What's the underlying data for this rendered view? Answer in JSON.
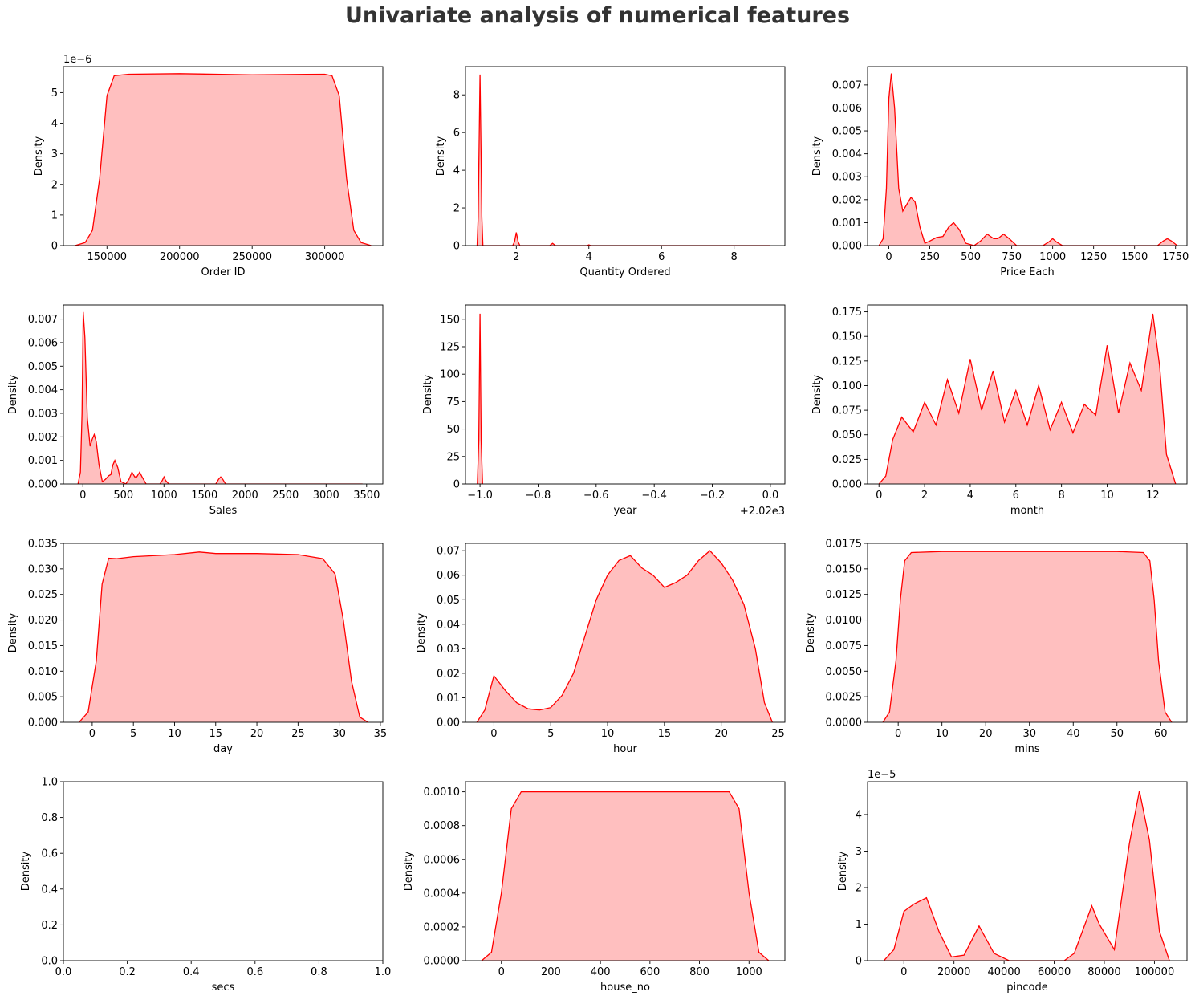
{
  "figure": {
    "title": "Univariate analysis of numerical features",
    "line_color": "#ff0000",
    "fill_color": "#ff8080"
  },
  "chart_data": [
    {
      "type": "area",
      "xlabel": "Order ID",
      "ylabel": "Density",
      "xlim": [
        120000,
        340000
      ],
      "ylim": [
        0,
        5.85
      ],
      "xticks": [
        150000,
        200000,
        250000,
        300000
      ],
      "yticks": [
        0,
        1,
        2,
        3,
        4,
        5
      ],
      "y_offset_text": "1e−6",
      "points": [
        [
          128000,
          0
        ],
        [
          135000,
          0.1
        ],
        [
          140000,
          0.5
        ],
        [
          145000,
          2.2
        ],
        [
          150000,
          4.9
        ],
        [
          155000,
          5.55
        ],
        [
          165000,
          5.6
        ],
        [
          200000,
          5.62
        ],
        [
          250000,
          5.58
        ],
        [
          300000,
          5.6
        ],
        [
          305000,
          5.55
        ],
        [
          310000,
          4.9
        ],
        [
          315000,
          2.2
        ],
        [
          320000,
          0.5
        ],
        [
          325000,
          0.1
        ],
        [
          332000,
          0
        ]
      ]
    },
    {
      "type": "area",
      "xlabel": "Quantity Ordered",
      "ylabel": "Density",
      "xlim": [
        0.6,
        9.4
      ],
      "ylim": [
        0,
        9.5
      ],
      "xticks": [
        2,
        4,
        6,
        8
      ],
      "yticks": [
        0,
        2,
        4,
        6,
        8
      ],
      "points": [
        [
          0.92,
          0
        ],
        [
          0.95,
          1.5
        ],
        [
          1.0,
          9.08
        ],
        [
          1.05,
          1.5
        ],
        [
          1.08,
          0
        ],
        [
          1.9,
          0
        ],
        [
          1.95,
          0.2
        ],
        [
          2.0,
          0.7
        ],
        [
          2.05,
          0.2
        ],
        [
          2.1,
          0
        ],
        [
          2.92,
          0
        ],
        [
          3.0,
          0.12
        ],
        [
          3.08,
          0
        ],
        [
          3.95,
          0
        ],
        [
          4.0,
          0.04
        ],
        [
          4.05,
          0
        ],
        [
          9.0,
          0
        ]
      ]
    },
    {
      "type": "area",
      "xlabel": "Price Each",
      "ylabel": "Density",
      "xlim": [
        -130,
        1820
      ],
      "ylim": [
        0,
        0.0078
      ],
      "xticks": [
        0,
        250,
        500,
        750,
        1000,
        1250,
        1500,
        1750
      ],
      "yticks": [
        0,
        0.001,
        0.002,
        0.003,
        0.004,
        0.005,
        0.006,
        0.007
      ],
      "ytick_labels": [
        "0.000",
        "0.001",
        "0.002",
        "0.003",
        "0.004",
        "0.005",
        "0.006",
        "0.007"
      ],
      "points": [
        [
          -60,
          0
        ],
        [
          -35,
          0.0003
        ],
        [
          -15,
          0.0025
        ],
        [
          0,
          0.0064
        ],
        [
          15,
          0.0075
        ],
        [
          35,
          0.006
        ],
        [
          60,
          0.0025
        ],
        [
          85,
          0.0015
        ],
        [
          110,
          0.0018
        ],
        [
          135,
          0.0021
        ],
        [
          160,
          0.0019
        ],
        [
          190,
          0.0008
        ],
        [
          220,
          0.0001
        ],
        [
          250,
          0.0002
        ],
        [
          290,
          0.00035
        ],
        [
          330,
          0.0004
        ],
        [
          365,
          0.0008
        ],
        [
          395,
          0.001
        ],
        [
          430,
          0.0007
        ],
        [
          470,
          0.0001
        ],
        [
          520,
          0
        ],
        [
          560,
          0.0002
        ],
        [
          600,
          0.0005
        ],
        [
          640,
          0.0003
        ],
        [
          665,
          0.0003
        ],
        [
          700,
          0.0005
        ],
        [
          735,
          0.0003
        ],
        [
          780,
          0
        ],
        [
          940,
          0
        ],
        [
          975,
          0.00015
        ],
        [
          1000,
          0.0003
        ],
        [
          1025,
          0.00015
        ],
        [
          1060,
          0
        ],
        [
          1640,
          0
        ],
        [
          1675,
          0.0002
        ],
        [
          1700,
          0.0003
        ],
        [
          1725,
          0.0002
        ],
        [
          1760,
          0
        ]
      ]
    },
    {
      "type": "area",
      "xlabel": "Sales",
      "ylabel": "Density",
      "xlim": [
        -240,
        3700
      ],
      "ylim": [
        0,
        0.0076
      ],
      "xticks": [
        0,
        500,
        1000,
        1500,
        2000,
        2500,
        3000,
        3500
      ],
      "yticks": [
        0,
        0.001,
        0.002,
        0.003,
        0.004,
        0.005,
        0.006,
        0.007
      ],
      "ytick_labels": [
        "0.000",
        "0.001",
        "0.002",
        "0.003",
        "0.004",
        "0.005",
        "0.006",
        "0.007"
      ],
      "points": [
        [
          -60,
          0
        ],
        [
          -30,
          0.0005
        ],
        [
          -10,
          0.003
        ],
        [
          5,
          0.0073
        ],
        [
          25,
          0.0062
        ],
        [
          55,
          0.0028
        ],
        [
          90,
          0.0016
        ],
        [
          115,
          0.0019
        ],
        [
          140,
          0.0021
        ],
        [
          165,
          0.0018
        ],
        [
          200,
          0.0008
        ],
        [
          240,
          0.0001
        ],
        [
          280,
          0.0002
        ],
        [
          320,
          0.00035
        ],
        [
          345,
          0.0004
        ],
        [
          370,
          0.0008
        ],
        [
          395,
          0.001
        ],
        [
          430,
          0.0007
        ],
        [
          470,
          0.0001
        ],
        [
          530,
          0
        ],
        [
          570,
          0.0002
        ],
        [
          605,
          0.0005
        ],
        [
          640,
          0.0003
        ],
        [
          665,
          0.0003
        ],
        [
          700,
          0.0005
        ],
        [
          730,
          0.0003
        ],
        [
          780,
          0
        ],
        [
          950,
          0
        ],
        [
          980,
          0.00015
        ],
        [
          1000,
          0.0003
        ],
        [
          1020,
          0.00015
        ],
        [
          1060,
          0
        ],
        [
          1640,
          0
        ],
        [
          1675,
          0.0002
        ],
        [
          1700,
          0.0003
        ],
        [
          1725,
          0.0002
        ],
        [
          1760,
          0
        ],
        [
          3450,
          0
        ]
      ]
    },
    {
      "type": "area",
      "xlabel": "year",
      "ylabel": "Density",
      "xlim": [
        -1.05,
        0.05
      ],
      "ylim": [
        0,
        163
      ],
      "xticks": [
        -1.0,
        -0.8,
        -0.6,
        -0.4,
        -0.2,
        0.0
      ],
      "yticks": [
        0,
        25,
        50,
        75,
        100,
        125,
        150
      ],
      "xtick_labels": [
        "−1.0",
        "−0.8",
        "−0.6",
        "−0.4",
        "−0.2",
        "0.0"
      ],
      "x_offset_text": "+2.02e3",
      "points": [
        [
          -1.009,
          0
        ],
        [
          -1.004,
          40
        ],
        [
          -1.0,
          155
        ],
        [
          -0.996,
          40
        ],
        [
          -0.991,
          0
        ]
      ]
    },
    {
      "type": "area",
      "xlabel": "month",
      "ylabel": "Density",
      "xlim": [
        -0.5,
        13.5
      ],
      "ylim": [
        0,
        0.182
      ],
      "xticks": [
        0,
        2,
        4,
        6,
        8,
        10,
        12
      ],
      "yticks": [
        0,
        0.025,
        0.05,
        0.075,
        0.1,
        0.125,
        0.15,
        0.175
      ],
      "ytick_labels": [
        "0.000",
        "0.025",
        "0.050",
        "0.075",
        "0.100",
        "0.125",
        "0.150",
        "0.175"
      ],
      "points": [
        [
          0,
          0
        ],
        [
          0.3,
          0.008
        ],
        [
          0.6,
          0.045
        ],
        [
          1,
          0.068
        ],
        [
          1.5,
          0.053
        ],
        [
          2,
          0.083
        ],
        [
          2.5,
          0.06
        ],
        [
          3,
          0.106
        ],
        [
          3.5,
          0.072
        ],
        [
          4,
          0.127
        ],
        [
          4.5,
          0.075
        ],
        [
          5,
          0.115
        ],
        [
          5.5,
          0.063
        ],
        [
          6,
          0.095
        ],
        [
          6.5,
          0.06
        ],
        [
          7,
          0.1
        ],
        [
          7.5,
          0.055
        ],
        [
          8,
          0.083
        ],
        [
          8.5,
          0.052
        ],
        [
          9,
          0.081
        ],
        [
          9.5,
          0.07
        ],
        [
          10,
          0.141
        ],
        [
          10.5,
          0.072
        ],
        [
          11,
          0.123
        ],
        [
          11.5,
          0.095
        ],
        [
          12,
          0.173
        ],
        [
          12.3,
          0.12
        ],
        [
          12.6,
          0.03
        ],
        [
          13,
          0
        ]
      ]
    },
    {
      "type": "area",
      "xlabel": "day",
      "ylabel": "Density",
      "xlim": [
        -3.5,
        35.3
      ],
      "ylim": [
        0,
        0.035
      ],
      "xticks": [
        0,
        5,
        10,
        15,
        20,
        25,
        30,
        35
      ],
      "yticks": [
        0,
        0.005,
        0.01,
        0.015,
        0.02,
        0.025,
        0.03,
        0.035
      ],
      "ytick_labels": [
        "0.000",
        "0.005",
        "0.010",
        "0.015",
        "0.020",
        "0.025",
        "0.030",
        "0.035"
      ],
      "points": [
        [
          -1.6,
          0
        ],
        [
          -0.5,
          0.002
        ],
        [
          0.5,
          0.012
        ],
        [
          1.2,
          0.027
        ],
        [
          2,
          0.0321
        ],
        [
          3,
          0.032
        ],
        [
          5,
          0.0324
        ],
        [
          10,
          0.0328
        ],
        [
          13,
          0.0333
        ],
        [
          15,
          0.033
        ],
        [
          20,
          0.033
        ],
        [
          25,
          0.0328
        ],
        [
          28,
          0.032
        ],
        [
          29.5,
          0.029
        ],
        [
          30.5,
          0.02
        ],
        [
          31.5,
          0.008
        ],
        [
          32.5,
          0.001
        ],
        [
          33.5,
          0
        ]
      ]
    },
    {
      "type": "area",
      "xlabel": "hour",
      "ylabel": "Density",
      "xlim": [
        -2.5,
        25.6
      ],
      "ylim": [
        0,
        0.073
      ],
      "xticks": [
        0,
        5,
        10,
        15,
        20,
        25
      ],
      "yticks": [
        0,
        0.01,
        0.02,
        0.03,
        0.04,
        0.05,
        0.06,
        0.07
      ],
      "ytick_labels": [
        "0.00",
        "0.01",
        "0.02",
        "0.03",
        "0.04",
        "0.05",
        "0.06",
        "0.07"
      ],
      "points": [
        [
          -1.5,
          0
        ],
        [
          -0.8,
          0.005
        ],
        [
          0,
          0.019
        ],
        [
          1,
          0.013
        ],
        [
          2,
          0.008
        ],
        [
          3,
          0.0055
        ],
        [
          4,
          0.005
        ],
        [
          5,
          0.006
        ],
        [
          6,
          0.011
        ],
        [
          7,
          0.02
        ],
        [
          8,
          0.035
        ],
        [
          9,
          0.05
        ],
        [
          10,
          0.06
        ],
        [
          11,
          0.066
        ],
        [
          12,
          0.068
        ],
        [
          13,
          0.063
        ],
        [
          14,
          0.06
        ],
        [
          15,
          0.055
        ],
        [
          16,
          0.057
        ],
        [
          17,
          0.06
        ],
        [
          18,
          0.066
        ],
        [
          19,
          0.07
        ],
        [
          20,
          0.065
        ],
        [
          21,
          0.058
        ],
        [
          22,
          0.048
        ],
        [
          23,
          0.03
        ],
        [
          23.8,
          0.008
        ],
        [
          24.5,
          0
        ]
      ]
    },
    {
      "type": "area",
      "xlabel": "mins",
      "ylabel": "Density",
      "xlim": [
        -7,
        66
      ],
      "ylim": [
        0,
        0.0175
      ],
      "xticks": [
        0,
        10,
        20,
        30,
        40,
        50,
        60
      ],
      "yticks": [
        0,
        0.0025,
        0.005,
        0.0075,
        0.01,
        0.0125,
        0.015,
        0.0175
      ],
      "ytick_labels": [
        "0.0000",
        "0.0025",
        "0.0050",
        "0.0075",
        "0.0100",
        "0.0125",
        "0.0150",
        "0.0175"
      ],
      "points": [
        [
          -3.5,
          0
        ],
        [
          -2,
          0.001
        ],
        [
          -0.5,
          0.006
        ],
        [
          0.5,
          0.012
        ],
        [
          1.5,
          0.0158
        ],
        [
          3,
          0.0166
        ],
        [
          10,
          0.0167
        ],
        [
          30,
          0.0167
        ],
        [
          50,
          0.0167
        ],
        [
          56,
          0.0166
        ],
        [
          57.5,
          0.0158
        ],
        [
          58.5,
          0.012
        ],
        [
          59.5,
          0.006
        ],
        [
          61,
          0.001
        ],
        [
          62.5,
          0
        ]
      ]
    },
    {
      "type": "area",
      "xlabel": "secs",
      "ylabel": "Density",
      "xlim": [
        0,
        1
      ],
      "ylim": [
        0,
        1
      ],
      "xticks": [
        0,
        0.2,
        0.4,
        0.6,
        0.8,
        1.0
      ],
      "yticks": [
        0,
        0.2,
        0.4,
        0.6,
        0.8,
        1.0
      ],
      "xtick_labels": [
        "0.0",
        "0.2",
        "0.4",
        "0.6",
        "0.8",
        "1.0"
      ],
      "ytick_labels": [
        "0.0",
        "0.2",
        "0.4",
        "0.6",
        "0.8",
        "1.0"
      ],
      "points": []
    },
    {
      "type": "area",
      "xlabel": "house_no",
      "ylabel": "Density",
      "xlim": [
        -145,
        1145
      ],
      "ylim": [
        0,
        0.00106
      ],
      "xticks": [
        0,
        200,
        400,
        600,
        800,
        1000
      ],
      "yticks": [
        0,
        0.0002,
        0.0004,
        0.0006,
        0.0008,
        0.001
      ],
      "ytick_labels": [
        "0.0000",
        "0.0002",
        "0.0004",
        "0.0006",
        "0.0008",
        "0.0010"
      ],
      "points": [
        [
          -80,
          0
        ],
        [
          -40,
          5e-05
        ],
        [
          0,
          0.0004
        ],
        [
          40,
          0.0009
        ],
        [
          80,
          0.001
        ],
        [
          200,
          0.001
        ],
        [
          500,
          0.001
        ],
        [
          700,
          0.001
        ],
        [
          920,
          0.001
        ],
        [
          960,
          0.0009
        ],
        [
          1000,
          0.0004
        ],
        [
          1040,
          5e-05
        ],
        [
          1080,
          0
        ]
      ]
    },
    {
      "type": "area",
      "xlabel": "pincode",
      "ylabel": "Density",
      "xlim": [
        -14500,
        113000
      ],
      "ylim": [
        0,
        4.9
      ],
      "xticks": [
        0,
        20000,
        40000,
        60000,
        80000,
        100000
      ],
      "yticks": [
        0,
        1,
        2,
        3,
        4
      ],
      "y_offset_text": "1e−5",
      "points": [
        [
          -8000,
          0
        ],
        [
          -4000,
          0.3
        ],
        [
          0,
          1.35
        ],
        [
          4000,
          1.55
        ],
        [
          9000,
          1.72
        ],
        [
          14000,
          0.8
        ],
        [
          19000,
          0.1
        ],
        [
          24000,
          0.15
        ],
        [
          30000,
          0.95
        ],
        [
          36000,
          0.2
        ],
        [
          42000,
          0
        ],
        [
          64000,
          0
        ],
        [
          68000,
          0.2
        ],
        [
          75000,
          1.5
        ],
        [
          78000,
          1
        ],
        [
          84000,
          0.3
        ],
        [
          90000,
          3.2
        ],
        [
          94000,
          4.65
        ],
        [
          98000,
          3.3
        ],
        [
          102000,
          0.8
        ],
        [
          106000,
          0
        ]
      ]
    }
  ]
}
